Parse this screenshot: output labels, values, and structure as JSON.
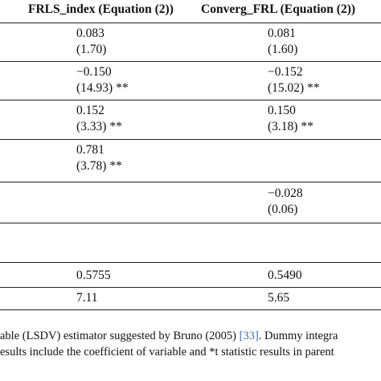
{
  "headers": {
    "col1": "FRLS_index (Equation (2))",
    "col2": "Converg_FRL (Equation (2))"
  },
  "rows": [
    {
      "c1_value": "0.083",
      "c1_stat": "(1.70)",
      "c2_value": "0.081",
      "c2_stat": "(1.60)"
    },
    {
      "c1_value": "−0.150",
      "c1_stat": "(14.93) **",
      "c2_value": "−0.152",
      "c2_stat": "(15.02) **"
    },
    {
      "c1_value": "0.152",
      "c1_stat": "(3.33) **",
      "c2_value": "0.150",
      "c2_stat": "(3.18) **"
    },
    {
      "c1_value": "0.781",
      "c1_stat": "(3.78) **",
      "c2_value": "",
      "c2_stat": ""
    },
    {
      "c1_value": "",
      "c1_stat": "",
      "c2_value": "−0.028",
      "c2_stat": "(0.06)"
    },
    {
      "c1_value": "",
      "c1_stat": "",
      "c2_value": "",
      "c2_stat": ""
    },
    {
      "c1_value": "0.5755",
      "c1_stat": "",
      "c2_value": "0.5490",
      "c2_stat": ""
    },
    {
      "c1_value": "7.11",
      "c1_stat": "",
      "c2_value": "5.65",
      "c2_stat": ""
    }
  ],
  "notes": {
    "line1_pre": "able (LSDV) estimator suggested by Bruno (2005) ",
    "line1_ref": "[33]",
    "line1_post": ". Dummy integra",
    "line2": "esults include the coefficient of variable and *t statistic results in parent"
  }
}
